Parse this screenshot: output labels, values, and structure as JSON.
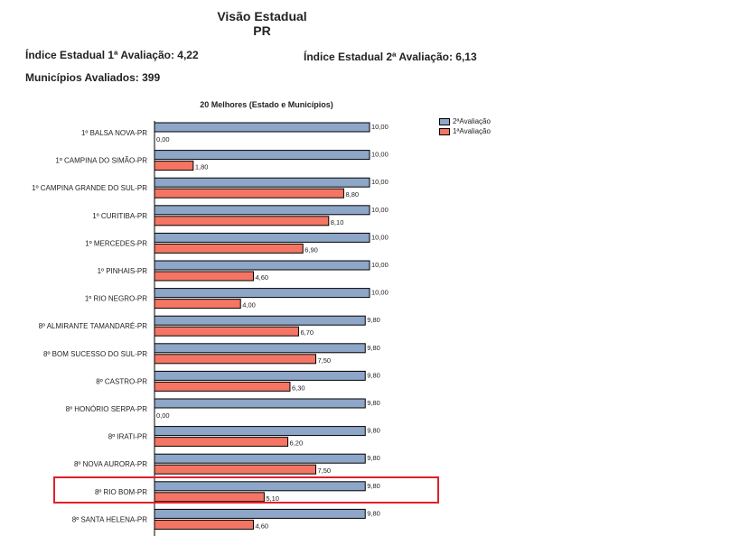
{
  "header": {
    "title": "Visão Estadual",
    "subtitle": "PR",
    "indice_1": "Índice Estadual 1ª Avaliação: 4,22",
    "indice_2": "Índice Estadual 2ª Avaliação: 6,13",
    "municipios": "Municípios Avaliados: 399"
  },
  "colors": {
    "second": "#8ea6c8",
    "first": "#f47563",
    "highlight": "#e0202a"
  },
  "chart_data": {
    "type": "bar",
    "title": "20 Melhores (Estado e Municípios)",
    "orientation": "horizontal",
    "xlim": [
      0,
      10
    ],
    "legend_position": "top-right",
    "categories": [
      "1º BALSA NOVA-PR",
      "1º CAMPINA DO SIMÃO-PR",
      "1º CAMPINA GRANDE DO SUL-PR",
      "1º CURITIBA-PR",
      "1º MERCEDES-PR",
      "1º PINHAIS-PR",
      "1º RIO NEGRO-PR",
      "8º ALMIRANTE TAMANDARÉ-PR",
      "8º BOM SUCESSO DO SUL-PR",
      "8º CASTRO-PR",
      "8º HONÓRIO SERPA-PR",
      "8º IRATI-PR",
      "8º NOVA AURORA-PR",
      "8º RIO BOM-PR",
      "8º SANTA HELENA-PR"
    ],
    "series": [
      {
        "name": "2ªAvaliação",
        "values": [
          10.0,
          10.0,
          10.0,
          10.0,
          10.0,
          10.0,
          10.0,
          9.8,
          9.8,
          9.8,
          9.8,
          9.8,
          9.8,
          9.8,
          9.8
        ],
        "labels": [
          "10,00",
          "10,00",
          "10,00",
          "10,00",
          "10,00",
          "10,00",
          "10,00",
          "9,80",
          "9,80",
          "9,80",
          "9,80",
          "9,80",
          "9,80",
          "9,80",
          "9,80"
        ]
      },
      {
        "name": "1ªAvaliação",
        "values": [
          0.0,
          1.8,
          8.8,
          8.1,
          6.9,
          4.6,
          4.0,
          6.7,
          7.5,
          6.3,
          0.0,
          6.2,
          7.5,
          5.1,
          4.6
        ],
        "labels": [
          "0,00",
          "1,80",
          "8,80",
          "8,10",
          "6,90",
          "4,60",
          "4,00",
          "6,70",
          "7,50",
          "6,30",
          "0,00",
          "6,20",
          "7,50",
          "5,10",
          "4,60"
        ]
      }
    ],
    "highlighted_category": "8º RIO BOM-PR"
  }
}
